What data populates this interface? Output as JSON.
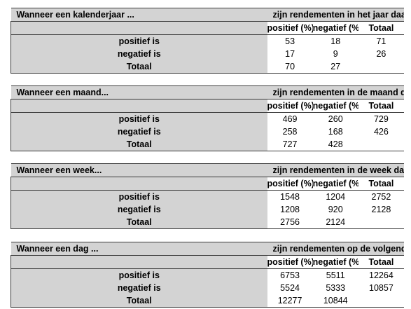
{
  "tables": [
    {
      "title_left": "Wanneer een kalenderjaar ...",
      "title_right": "zijn rendementen in het jaar daarop",
      "col_positive": "positief (%)",
      "col_negative": "negatief (%)",
      "col_total": "Totaal",
      "rows": [
        {
          "label": "positief is",
          "pos": "53",
          "neg": "18",
          "tot": "71"
        },
        {
          "label": "negatief is",
          "pos": "17",
          "neg": "9",
          "tot": "26"
        },
        {
          "label": "Totaal",
          "pos": "70",
          "neg": "27",
          "tot": ""
        }
      ]
    },
    {
      "title_left": "Wanneer een maand...",
      "title_right": "zijn rendementen in de maand daarop",
      "col_positive": "positief (%)",
      "col_negative": "negatief (%)",
      "col_total": "Totaal",
      "rows": [
        {
          "label": "positief is",
          "pos": "469",
          "neg": "260",
          "tot": "729"
        },
        {
          "label": "negatief is",
          "pos": "258",
          "neg": "168",
          "tot": "426"
        },
        {
          "label": "Totaal",
          "pos": "727",
          "neg": "428",
          "tot": ""
        }
      ]
    },
    {
      "title_left": "Wanneer een week...",
      "title_right": "zijn rendementen in de week daarop",
      "col_positive": "positief (%)",
      "col_negative": "negatief (%)",
      "col_total": "Totaal",
      "rows": [
        {
          "label": "positief is",
          "pos": "1548",
          "neg": "1204",
          "tot": "2752"
        },
        {
          "label": "negatief is",
          "pos": "1208",
          "neg": "920",
          "tot": "2128"
        },
        {
          "label": "Totaal",
          "pos": "2756",
          "neg": "2124",
          "tot": ""
        }
      ]
    },
    {
      "title_left": "Wanneer een dag ...",
      "title_right": "zijn rendementen op de volgende dag",
      "col_positive": "positief (%)",
      "col_negative": "negatief (%)",
      "col_total": "Totaal",
      "rows": [
        {
          "label": "positief is",
          "pos": "6753",
          "neg": "5511",
          "tot": "12264"
        },
        {
          "label": "negatief is",
          "pos": "5524",
          "neg": "5333",
          "tot": "10857"
        },
        {
          "label": "Totaal",
          "pos": "12277",
          "neg": "10844",
          "tot": ""
        }
      ]
    }
  ]
}
